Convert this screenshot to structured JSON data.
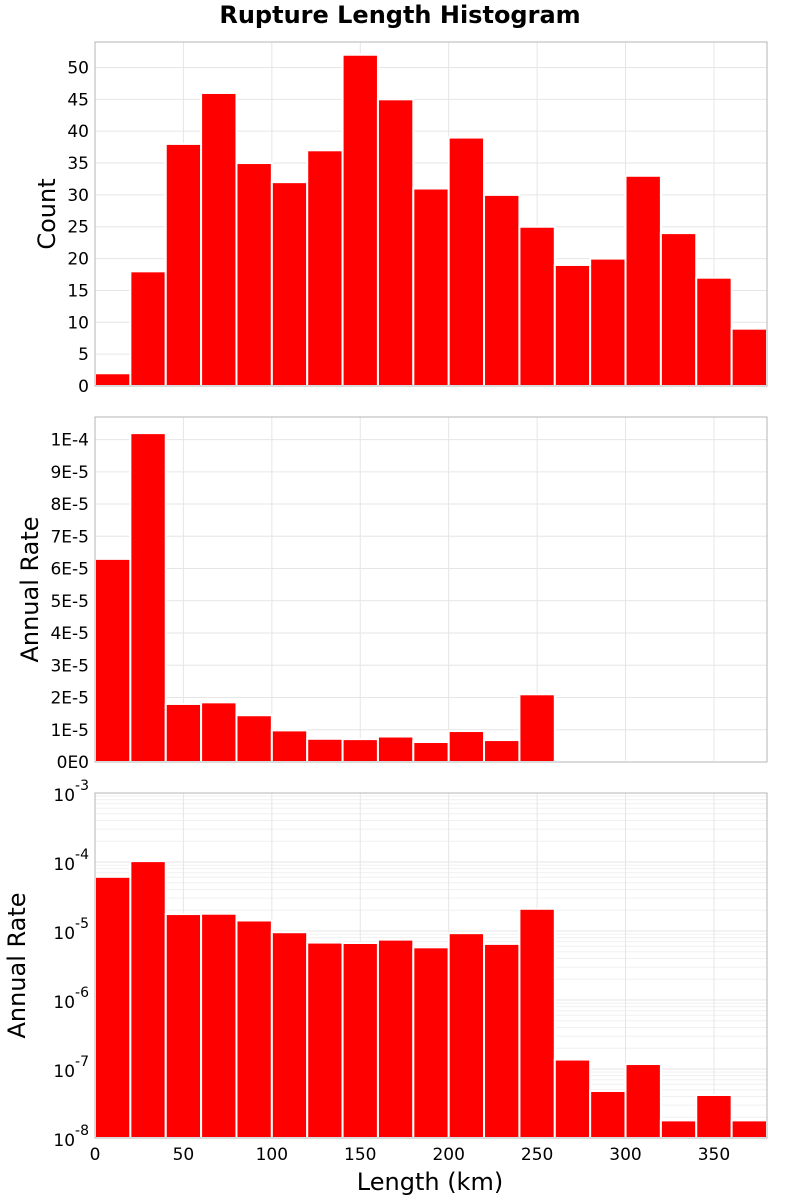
{
  "chart_data": {
    "type": "bar",
    "title": "Rupture Length Histogram",
    "xlabel": "Length (km)",
    "x_ticks": [
      "0",
      "50",
      "100",
      "150",
      "200",
      "250",
      "300",
      "350"
    ],
    "bins": [
      10,
      30,
      50,
      70,
      90,
      110,
      130,
      150,
      170,
      190,
      210,
      230,
      250,
      270,
      290,
      310,
      330,
      350,
      370
    ],
    "xlim": [
      0,
      380
    ],
    "panels": [
      {
        "ylabel": "Count",
        "scale": "linear",
        "ylim": [
          0,
          54
        ],
        "y_ticks": [
          {
            "v": 0,
            "t": "0"
          },
          {
            "v": 5,
            "t": "5"
          },
          {
            "v": 10,
            "t": "10"
          },
          {
            "v": 15,
            "t": "15"
          },
          {
            "v": 20,
            "t": "20"
          },
          {
            "v": 25,
            "t": "25"
          },
          {
            "v": 30,
            "t": "30"
          },
          {
            "v": 35,
            "t": "35"
          },
          {
            "v": 40,
            "t": "40"
          },
          {
            "v": 45,
            "t": "45"
          },
          {
            "v": 50,
            "t": "50"
          }
        ],
        "values": [
          2,
          18,
          38,
          46,
          35,
          32,
          37,
          52,
          45,
          31,
          39,
          30,
          25,
          19,
          20,
          33,
          24,
          17,
          9
        ]
      },
      {
        "ylabel": "Annual Rate",
        "scale": "linear",
        "ylim": [
          0,
          0.000107
        ],
        "y_ticks": [
          {
            "v": 0,
            "t": "0E0"
          },
          {
            "v": 1e-05,
            "t": "1E-5"
          },
          {
            "v": 2e-05,
            "t": "2E-5"
          },
          {
            "v": 3e-05,
            "t": "3E-5"
          },
          {
            "v": 4e-05,
            "t": "4E-5"
          },
          {
            "v": 5e-05,
            "t": "5E-5"
          },
          {
            "v": 6e-05,
            "t": "6E-5"
          },
          {
            "v": 7e-05,
            "t": "7E-5"
          },
          {
            "v": 8e-05,
            "t": "8E-5"
          },
          {
            "v": 9e-05,
            "t": "9E-5"
          },
          {
            "v": 0.0001,
            "t": "1E-4"
          }
        ],
        "values": [
          6.3e-05,
          0.000102,
          1.8e-05,
          1.85e-05,
          1.45e-05,
          9.8e-06,
          7.2e-06,
          7.1e-06,
          7.9e-06,
          6.2e-06,
          9.6e-06,
          6.8e-06,
          2.1e-05,
          1.4e-07,
          5e-08,
          1.2e-07,
          2e-08,
          4e-08,
          2e-08
        ]
      },
      {
        "ylabel": "Annual Rate",
        "scale": "log",
        "ylim": [
          1e-08,
          0.001
        ],
        "y_ticks": [
          {
            "v": 0.001,
            "base": "10",
            "exp": "-3"
          },
          {
            "v": 0.0001,
            "base": "10",
            "exp": "-4"
          },
          {
            "v": 1e-05,
            "base": "10",
            "exp": "-5"
          },
          {
            "v": 1e-06,
            "base": "10",
            "exp": "-6"
          },
          {
            "v": 1e-07,
            "base": "10",
            "exp": "-7"
          },
          {
            "v": 1e-08,
            "base": "10",
            "exp": "-8"
          }
        ],
        "values": [
          6.1e-05,
          0.000103,
          1.76e-05,
          1.78e-05,
          1.42e-05,
          9.6e-06,
          6.8e-06,
          6.7e-06,
          7.5e-06,
          5.8e-06,
          9.3e-06,
          6.5e-06,
          2.1e-05,
          1.37e-07,
          4.8e-08,
          1.18e-07,
          1.8e-08,
          4.2e-08,
          1.8e-08
        ]
      }
    ]
  }
}
